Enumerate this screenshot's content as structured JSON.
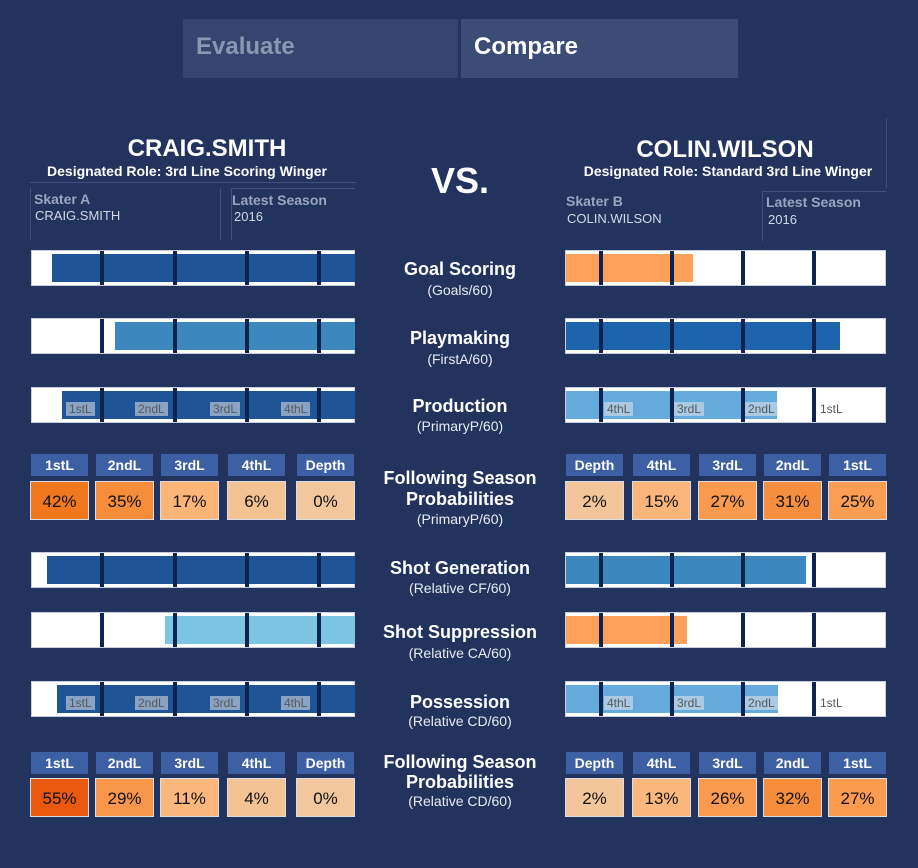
{
  "tabs": {
    "evaluate": "Evaluate",
    "compare": "Compare"
  },
  "vs": "VS.",
  "player_a": {
    "name": "CRAIG.SMITH",
    "role": "Designated Role: 3rd Line Scoring Winger",
    "skater_label": "Skater A",
    "skater_value": "CRAIG.SMITH",
    "season_label": "Latest Season",
    "season_value": "2016"
  },
  "player_b": {
    "name": "COLIN.WILSON",
    "role": "Designated Role: Standard 3rd Line Winger",
    "skater_label": "Skater B",
    "skater_value": "COLIN.WILSON",
    "season_label": "Latest Season",
    "season_value": "2016"
  },
  "metrics": {
    "goal_scoring": {
      "title": "Goal Scoring",
      "sub": "(Goals/60)"
    },
    "playmaking": {
      "title": "Playmaking",
      "sub": "(FirstA/60)"
    },
    "production": {
      "title": "Production",
      "sub": "(PrimaryP/60)"
    },
    "prob1": {
      "title1": "Following Season",
      "title2": "Probabilities",
      "sub": "(PrimaryP/60)"
    },
    "shot_gen": {
      "title": "Shot Generation",
      "sub": "(Relative CF/60)"
    },
    "shot_sup": {
      "title": "Shot Suppression",
      "sub": "(Relative CA/60)"
    },
    "possession": {
      "title": "Possession",
      "sub": "(Relative CD/60)"
    },
    "prob2": {
      "title1": "Following Season",
      "title2": "Probabilities",
      "sub": "(Relative CD/60)"
    }
  },
  "levels": {
    "l1": "1stL",
    "l2": "2ndL",
    "l3": "3rdL",
    "l4": "4thL"
  },
  "prob_a_headers": [
    "1stL",
    "2ndL",
    "3rdL",
    "4thL",
    "Depth"
  ],
  "prob_b_headers": [
    "Depth",
    "4thL",
    "3rdL",
    "2ndL",
    "1stL"
  ],
  "prob_a1": [
    "42%",
    "35%",
    "17%",
    "6%",
    "0%"
  ],
  "prob_b1": [
    "2%",
    "15%",
    "27%",
    "31%",
    "25%"
  ],
  "prob_a2": [
    "55%",
    "29%",
    "11%",
    "4%",
    "0%"
  ],
  "prob_b2": [
    "2%",
    "13%",
    "26%",
    "32%",
    "27%"
  ],
  "colors": {
    "background": "#22335e",
    "dark_blue": "#1f5596",
    "mid_blue": "#1e64ad",
    "steel_blue": "#3c87bd",
    "light_blue": "#7cc5e3",
    "sky_blue": "#64aadb",
    "orange": "#fda15a",
    "prob_header": "#3d5fa3"
  }
}
